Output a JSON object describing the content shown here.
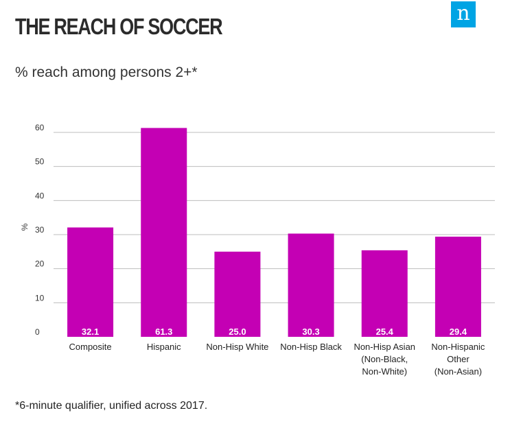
{
  "header": {
    "title": "THE REACH OF SOCCER",
    "logo_letter": "n"
  },
  "subtitle": "% reach among persons 2+*",
  "footnote": "*6-minute qualifier, unified across 2017.",
  "colors": {
    "bar": "#c400b4",
    "grid": "#bdbdbd",
    "logo": "#00a4e4"
  },
  "chart_data": {
    "type": "bar",
    "title": "THE REACH OF SOCCER",
    "subtitle": "% reach among persons 2+*",
    "ylabel": "%",
    "xlabel": "",
    "ylim": [
      0,
      60
    ],
    "yticks": [
      0,
      10,
      20,
      30,
      40,
      50,
      60
    ],
    "grid": true,
    "categories": [
      [
        "Composite"
      ],
      [
        "Hispanic"
      ],
      [
        "Non-Hisp White"
      ],
      [
        "Non-Hisp Black"
      ],
      [
        "Non-Hisp Asian",
        "(Non-Black,",
        "Non-White)"
      ],
      [
        "Non-Hispanic",
        "Other",
        "(Non-Asian)"
      ]
    ],
    "values": [
      32.1,
      61.3,
      25.0,
      30.3,
      25.4,
      29.4
    ],
    "value_labels": [
      "32.1",
      "61.3",
      "25.0",
      "30.3",
      "25.4",
      "29.4"
    ]
  }
}
